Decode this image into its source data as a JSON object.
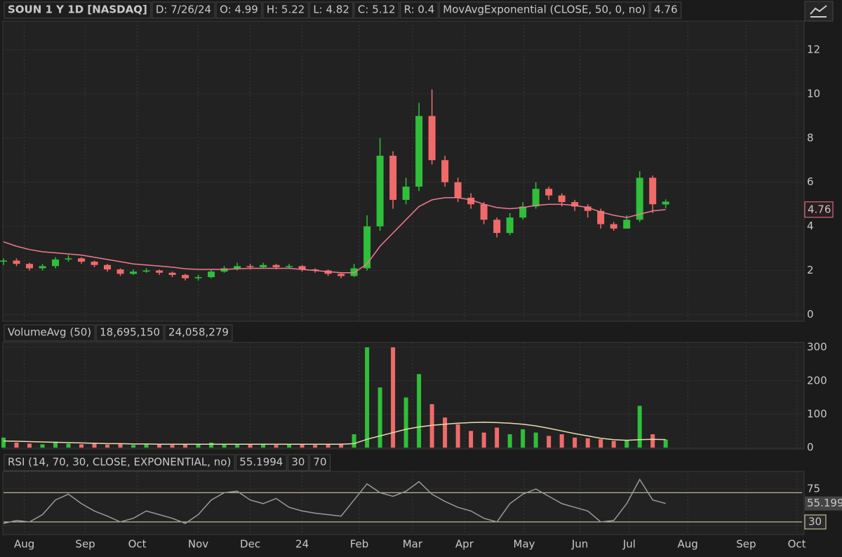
{
  "chart_data": [
    {
      "type": "candlestick",
      "title": "SOUN 1 Y 1D [NASDAQ]",
      "header": [
        "D: 7/26/24",
        "O: 4.99",
        "H: 5.22",
        "L: 4.82",
        "C: 5.12",
        "R: 0.4"
      ],
      "open": [
        2.4,
        2.45,
        2.3,
        2.1,
        2.2,
        2.5,
        2.55,
        2.4,
        2.25,
        2.05,
        1.85,
        1.95,
        2.0,
        1.9,
        1.8,
        1.65,
        1.7,
        1.95,
        2.1,
        2.2,
        2.15,
        2.25,
        2.15,
        2.2,
        2.05,
        2.0,
        1.85,
        1.75,
        2.1,
        4.0,
        7.2,
        5.2,
        5.8,
        9.0,
        7.0,
        6.0,
        5.3,
        5.0,
        4.3,
        3.7,
        4.4,
        4.9,
        5.7,
        5.4,
        5.1,
        4.9,
        4.7,
        4.1,
        3.9,
        4.3,
        6.2,
        4.99
      ],
      "high": [
        2.55,
        2.55,
        2.35,
        2.3,
        2.6,
        2.7,
        2.6,
        2.45,
        2.3,
        2.1,
        2.05,
        2.1,
        2.05,
        1.95,
        1.85,
        1.8,
        2.05,
        2.2,
        2.35,
        2.3,
        2.35,
        2.3,
        2.3,
        2.25,
        2.1,
        2.05,
        1.9,
        2.3,
        4.5,
        8.0,
        7.4,
        6.2,
        9.6,
        10.2,
        7.2,
        6.2,
        5.5,
        5.1,
        4.4,
        4.6,
        5.1,
        6.0,
        5.8,
        5.5,
        5.2,
        5.0,
        4.8,
        4.2,
        4.5,
        6.5,
        6.3,
        5.22
      ],
      "low": [
        2.25,
        2.2,
        2.0,
        2.0,
        2.1,
        2.4,
        2.3,
        2.15,
        1.95,
        1.75,
        1.8,
        1.9,
        1.8,
        1.7,
        1.55,
        1.55,
        1.65,
        1.9,
        2.0,
        2.05,
        2.1,
        2.05,
        2.1,
        1.95,
        1.9,
        1.75,
        1.65,
        1.7,
        2.0,
        3.8,
        4.8,
        5.0,
        5.6,
        6.8,
        5.8,
        5.1,
        4.8,
        4.1,
        3.5,
        3.6,
        4.3,
        4.8,
        5.2,
        4.9,
        4.7,
        4.4,
        3.9,
        3.8,
        3.9,
        4.2,
        4.6,
        4.82
      ],
      "close": [
        2.45,
        2.3,
        2.1,
        2.2,
        2.5,
        2.55,
        2.4,
        2.25,
        2.05,
        1.85,
        1.95,
        2.0,
        1.9,
        1.8,
        1.65,
        1.7,
        1.95,
        2.1,
        2.2,
        2.15,
        2.25,
        2.15,
        2.2,
        2.05,
        2.0,
        1.85,
        1.75,
        2.1,
        4.0,
        7.2,
        5.2,
        5.8,
        9.0,
        7.0,
        6.0,
        5.3,
        5.0,
        4.3,
        3.7,
        4.4,
        4.9,
        5.7,
        5.4,
        5.1,
        4.9,
        4.7,
        4.1,
        3.9,
        4.3,
        6.2,
        5.0,
        5.12
      ],
      "up_color": "#2fbf3a",
      "down_color": "#f06a6a",
      "series": [
        {
          "name": "MovAvgExponential (CLOSE, 50, 0, no)",
          "color": "#f07a90",
          "last_label": "4.76",
          "values": [
            3.3,
            3.1,
            2.95,
            2.85,
            2.8,
            2.75,
            2.7,
            2.6,
            2.5,
            2.4,
            2.3,
            2.25,
            2.2,
            2.15,
            2.08,
            2.05,
            2.05,
            2.05,
            2.08,
            2.1,
            2.1,
            2.1,
            2.1,
            2.05,
            2.0,
            1.95,
            1.9,
            1.9,
            2.3,
            3.1,
            3.7,
            4.3,
            4.9,
            5.2,
            5.3,
            5.3,
            5.2,
            5.0,
            4.85,
            4.8,
            4.85,
            4.95,
            5.0,
            5.0,
            4.95,
            4.85,
            4.65,
            4.5,
            4.4,
            4.55,
            4.7,
            4.76
          ]
        }
      ],
      "xlim": [
        0,
        61.5
      ],
      "ylim": [
        -0.3,
        13.3
      ],
      "yticks": [
        0,
        2,
        4,
        6,
        8,
        10,
        12
      ],
      "grid": true
    },
    {
      "type": "bar",
      "title": "VolumeAvg (50)",
      "header": [
        "18,695,150",
        "24,058,279"
      ],
      "values": [
        30,
        15,
        12,
        10,
        18,
        12,
        10,
        14,
        9,
        12,
        8,
        10,
        9,
        8,
        11,
        12,
        15,
        10,
        9,
        10,
        12,
        8,
        10,
        9,
        8,
        10,
        12,
        40,
        300,
        180,
        300,
        150,
        220,
        130,
        90,
        70,
        50,
        45,
        60,
        40,
        55,
        45,
        35,
        40,
        30,
        28,
        25,
        20,
        22,
        125,
        40,
        24
      ],
      "series": [
        {
          "name": "VolumeAvg (50)",
          "color": "#e8dcb0",
          "values": [
            20,
            19,
            18,
            17,
            16,
            15,
            14,
            13,
            12,
            12,
            11,
            11,
            10,
            10,
            10,
            10,
            10,
            10,
            10,
            10,
            10,
            10,
            10,
            10,
            10,
            10,
            10,
            12,
            25,
            35,
            45,
            55,
            62,
            67,
            70,
            73,
            75,
            76,
            75,
            73,
            70,
            65,
            58,
            50,
            42,
            35,
            28,
            24,
            22,
            24,
            25,
            24.06
          ]
        }
      ],
      "xlim": [
        0,
        61.5
      ],
      "ylim": [
        -4,
        315
      ],
      "yticks": [
        0,
        100,
        200,
        300
      ],
      "grid": true
    },
    {
      "type": "line",
      "title": "RSI (14, 70, 30, CLOSE, EXPONENTIAL, no)",
      "header": [
        "55.1994",
        "30",
        "70"
      ],
      "color": "#9a9a9a",
      "last_label": "55.199",
      "values": [
        28,
        32,
        30,
        40,
        60,
        68,
        55,
        45,
        38,
        30,
        35,
        45,
        40,
        35,
        28,
        40,
        60,
        70,
        72,
        60,
        55,
        62,
        50,
        45,
        42,
        40,
        38,
        60,
        82,
        70,
        65,
        72,
        85,
        68,
        58,
        50,
        45,
        35,
        30,
        55,
        68,
        75,
        65,
        55,
        50,
        45,
        30,
        32,
        55,
        88,
        60,
        55.2
      ],
      "levels": [
        {
          "value": 70,
          "color": "#e8dcb0"
        },
        {
          "value": 30,
          "color": "#e8dcb0",
          "label": "30"
        }
      ],
      "xlim": [
        0,
        61.5
      ],
      "ylim": [
        12.8,
        99
      ],
      "yticks": [
        25,
        75
      ],
      "xticks": [
        {
          "value": 1.6,
          "label": "Aug"
        },
        {
          "value": 6.3,
          "label": "Sep"
        },
        {
          "value": 10.3,
          "label": "Oct"
        },
        {
          "value": 15.0,
          "label": "Nov"
        },
        {
          "value": 19.0,
          "label": "Dec"
        },
        {
          "value": 23.0,
          "label": "24"
        },
        {
          "value": 27.4,
          "label": "Feb"
        },
        {
          "value": 31.5,
          "label": "Mar"
        },
        {
          "value": 35.5,
          "label": "Apr"
        },
        {
          "value": 40.1,
          "label": "May"
        },
        {
          "value": 44.4,
          "label": "Jun"
        },
        {
          "value": 48.2,
          "label": "Jul"
        },
        {
          "value": 52.7,
          "label": "Aug"
        },
        {
          "value": 57.2,
          "label": "Sep"
        },
        {
          "value": 61.1,
          "label": "Oct"
        }
      ],
      "grid": true
    }
  ]
}
